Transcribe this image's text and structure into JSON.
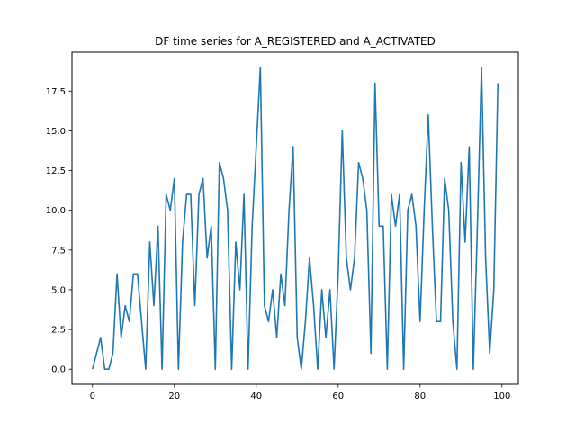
{
  "chart_data": {
    "type": "line",
    "title": "DF time series for A_REGISTERED and A_ACTIVATED",
    "xlabel": "",
    "ylabel": "",
    "xlim": [
      -5,
      104
    ],
    "ylim": [
      -0.95,
      19.95
    ],
    "xticks": [
      0,
      20,
      40,
      60,
      80,
      100
    ],
    "yticks": [
      0.0,
      2.5,
      5.0,
      7.5,
      10.0,
      12.5,
      15.0,
      17.5
    ],
    "ytick_labels": [
      "0.0",
      "2.5",
      "5.0",
      "7.5",
      "10.0",
      "12.5",
      "15.0",
      "17.5"
    ],
    "grid": false,
    "color": "#1f77b4",
    "series": [
      {
        "x": [
          0,
          1,
          2,
          3,
          4,
          5,
          6,
          7,
          8,
          9,
          10,
          11,
          12,
          13,
          14,
          15,
          16,
          17,
          18,
          19,
          20,
          21,
          22,
          23,
          24,
          25,
          26,
          27,
          28,
          29,
          30,
          31,
          32,
          33,
          34,
          35,
          36,
          37,
          38,
          39,
          40,
          41,
          42,
          43,
          44,
          45,
          46,
          47,
          48,
          49,
          50,
          51,
          52,
          53,
          54,
          55,
          56,
          57,
          58,
          59,
          60,
          61,
          62,
          63,
          64,
          65,
          66,
          67,
          68,
          69,
          70,
          71,
          72,
          73,
          74,
          75,
          76,
          77,
          78,
          79,
          80,
          81,
          82,
          83,
          84,
          85,
          86,
          87,
          88,
          89,
          90,
          91,
          92,
          93,
          94,
          95,
          96,
          97,
          98,
          99
        ],
        "values": [
          0,
          1,
          2,
          0,
          0,
          1,
          6,
          2,
          4,
          3,
          6,
          6,
          3,
          0,
          8,
          4,
          9,
          0,
          11,
          10,
          12,
          0,
          8,
          11,
          11,
          4,
          11,
          12,
          7,
          9,
          0,
          13,
          12,
          10,
          0,
          8,
          5,
          11,
          0,
          9,
          14,
          19,
          4,
          3,
          5,
          2,
          6,
          4,
          10,
          14,
          2,
          0,
          3,
          7,
          4,
          0,
          5,
          2,
          5,
          0,
          6,
          15,
          7,
          5,
          7,
          13,
          12,
          10,
          1,
          18,
          9,
          9,
          0,
          11,
          9,
          11,
          0,
          10,
          11,
          9,
          3,
          10,
          16,
          9,
          3,
          3,
          12,
          10,
          3,
          0,
          13,
          8,
          14,
          0,
          9,
          19,
          7,
          1,
          5,
          18
        ]
      }
    ]
  }
}
